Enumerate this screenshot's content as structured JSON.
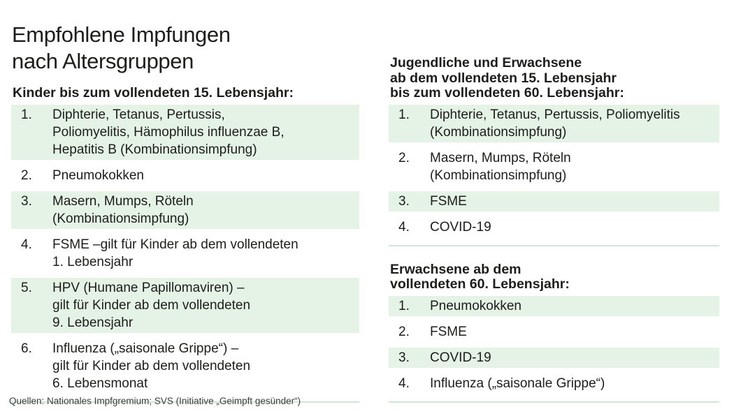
{
  "page": {
    "title_lines": [
      "Empfohlene Impfungen",
      "nach Altersgruppen"
    ],
    "footer": "Quellen: Nationales Impfgremium; SVS (Initiative „Geimpft gesünder“)"
  },
  "colors": {
    "row_green": "#e4f3e6",
    "rule_green": "#cfe8d5",
    "text": "#1d1d1b",
    "footer_text": "#3d3d3b"
  },
  "sections": [
    {
      "id": "kinder",
      "heading_lines": [
        "Kinder bis zum vollendeten 15. Lebensjahr:"
      ],
      "items": [
        {
          "number": "1.",
          "shaded": true,
          "lines": [
            "Diphterie, Tetanus, Pertussis,",
            "Poliomyelitis, Hämophilus influenzae B,",
            "Hepatitis B (Kombinationsimpfung)"
          ]
        },
        {
          "number": "2.",
          "shaded": false,
          "lines": [
            "Pneumokokken"
          ]
        },
        {
          "number": "3.",
          "shaded": true,
          "lines": [
            "Masern, Mumps, Röteln",
            "(Kombinationsimpfung)"
          ]
        },
        {
          "number": "4.",
          "shaded": false,
          "lines": [
            "FSME –gilt für Kinder ab dem vollendeten",
            "1. Lebensjahr"
          ]
        },
        {
          "number": "5.",
          "shaded": true,
          "lines": [
            "HPV (Humane Papillomaviren) –",
            "gilt für Kinder ab dem vollendeten",
            "9. Lebensjahr"
          ]
        },
        {
          "number": "6.",
          "shaded": false,
          "lines": [
            "Influenza („saisonale Grippe“) –",
            "gilt für Kinder ab dem vollendeten",
            "6. Lebensmonat"
          ]
        }
      ]
    },
    {
      "id": "jugendliche-erwachsene",
      "heading_lines": [
        "Jugendliche und Erwachsene",
        "ab dem vollendeten 15. Lebensjahr",
        "bis zum vollendeten 60. Lebensjahr:"
      ],
      "items": [
        {
          "number": "1.",
          "shaded": true,
          "lines": [
            "Diphterie, Tetanus, Pertussis, Poliomyelitis",
            "(Kombinationsimpfung)"
          ]
        },
        {
          "number": "2.",
          "shaded": false,
          "lines": [
            "Masern, Mumps, Röteln",
            "(Kombinationsimpfung)"
          ]
        },
        {
          "number": "3.",
          "shaded": true,
          "lines": [
            "FSME"
          ]
        },
        {
          "number": "4.",
          "shaded": false,
          "lines": [
            "COVID-19"
          ]
        }
      ]
    },
    {
      "id": "erwachsene-60",
      "heading_lines": [
        "Erwachsene ab dem",
        "vollendeten 60. Lebensjahr:"
      ],
      "items": [
        {
          "number": "1.",
          "shaded": true,
          "lines": [
            "Pneumokokken"
          ]
        },
        {
          "number": "2.",
          "shaded": false,
          "lines": [
            "FSME"
          ]
        },
        {
          "number": "3.",
          "shaded": true,
          "lines": [
            "COVID-19"
          ]
        },
        {
          "number": "4.",
          "shaded": false,
          "lines": [
            "Influenza („saisonale Grippe“)"
          ]
        }
      ]
    }
  ]
}
